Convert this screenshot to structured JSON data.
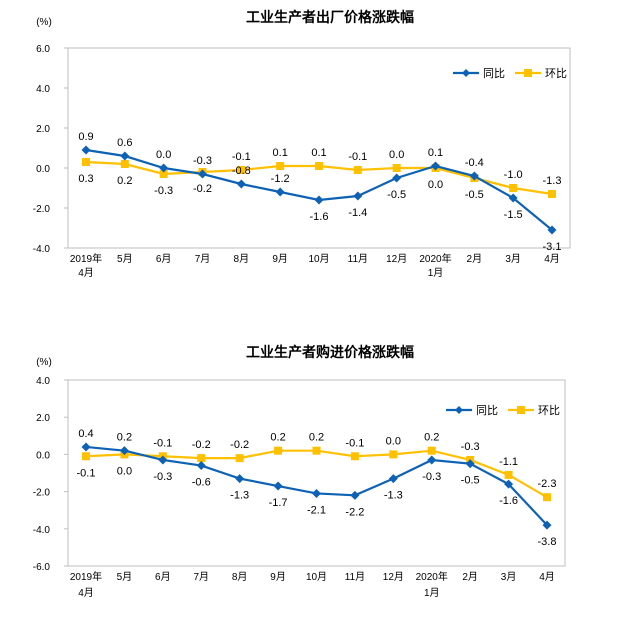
{
  "chart_data": [
    {
      "type": "line",
      "title": "工业生产者出厂价格涨跌幅",
      "ylabel": "(%)",
      "ylim": [
        -4.0,
        6.0
      ],
      "yticks": [
        "6.0",
        "4.0",
        "2.0",
        "0.0",
        "-2.0",
        "-4.0"
      ],
      "categories": [
        "2019年\n4月",
        "5月",
        "6月",
        "7月",
        "8月",
        "9月",
        "10月",
        "11月",
        "12月",
        "2020年\n1月",
        "2月",
        "3月",
        "4月"
      ],
      "series": [
        {
          "name": "同比",
          "color": "#0e62b5",
          "marker": "diamond",
          "values": [
            0.9,
            0.6,
            0.0,
            -0.3,
            -0.8,
            -1.2,
            -1.6,
            -1.4,
            -0.5,
            0.1,
            -0.4,
            -1.5,
            -3.1
          ]
        },
        {
          "name": "环比",
          "color": "#ffc000",
          "marker": "square",
          "values": [
            0.3,
            0.2,
            -0.3,
            -0.2,
            -0.1,
            0.1,
            0.1,
            -0.1,
            0.0,
            0.0,
            -0.5,
            -1.0,
            -1.3
          ]
        }
      ],
      "legend": "top-right",
      "grid": false
    },
    {
      "type": "line",
      "title": "工业生产者购进价格涨跌幅",
      "ylabel": "(%)",
      "ylim": [
        -6.0,
        4.0
      ],
      "yticks": [
        "4.0",
        "2.0",
        "0.0",
        "-2.0",
        "-4.0",
        "-6.0"
      ],
      "categories": [
        "2019年\n4月",
        "5月",
        "6月",
        "7月",
        "8月",
        "9月",
        "10月",
        "11月",
        "12月",
        "2020年\n1月",
        "2月",
        "3月",
        "4月"
      ],
      "series": [
        {
          "name": "同比",
          "color": "#0e62b5",
          "marker": "diamond",
          "values": [
            0.4,
            0.2,
            -0.3,
            -0.6,
            -1.3,
            -1.7,
            -2.1,
            -2.2,
            -1.3,
            -0.3,
            -0.5,
            -1.6,
            -3.8
          ]
        },
        {
          "name": "环比",
          "color": "#ffc000",
          "marker": "square",
          "values": [
            -0.1,
            0.0,
            -0.1,
            -0.2,
            -0.2,
            0.2,
            0.2,
            -0.1,
            0.0,
            0.2,
            -0.3,
            -1.1,
            -2.3
          ]
        }
      ],
      "legend": "top-right",
      "grid": false
    }
  ]
}
